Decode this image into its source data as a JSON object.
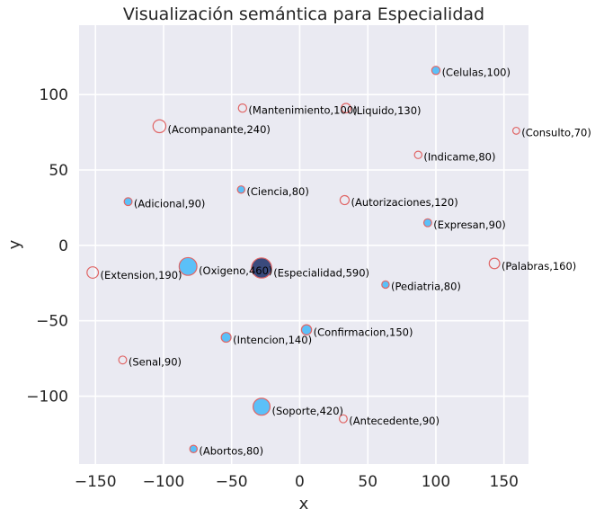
{
  "chart_data": {
    "type": "scatter",
    "title": "Visualización semántica para Especialidad",
    "xlabel": "x",
    "ylabel": "y",
    "xlim": [
      -162,
      168
    ],
    "ylim": [
      -145,
      146
    ],
    "x_ticks": [
      -150,
      -100,
      -50,
      0,
      50,
      100,
      150
    ],
    "y_ticks": [
      -100,
      -50,
      0,
      50,
      100
    ],
    "x_tick_labels": [
      "−150",
      "−100",
      "−50",
      "0",
      "50",
      "100",
      "150"
    ],
    "y_tick_labels": [
      "−100",
      "−50",
      "0",
      "50",
      "100"
    ],
    "grid": true,
    "colors": {
      "background": "#eaeaf2",
      "grid": "#ffffff",
      "filled": "#5bc0f8",
      "edge": "#e06666",
      "center": "#3a4a7c"
    },
    "points": [
      {
        "label": "(Especialidad,590)",
        "x": -28,
        "y": -15,
        "value": 590,
        "style": "center"
      },
      {
        "label": "(Celulas,100)",
        "x": 100,
        "y": 116,
        "value": 100,
        "style": "filled"
      },
      {
        "label": "(Mantenimiento,100)",
        "x": -42,
        "y": 91,
        "value": 100,
        "style": "hollow"
      },
      {
        "label": "(Liquido,130)",
        "x": 34,
        "y": 91,
        "value": 130,
        "style": "hollow"
      },
      {
        "label": "(Consulto,70)",
        "x": 159,
        "y": 76,
        "value": 70,
        "style": "hollow"
      },
      {
        "label": "(Acompanante,240)",
        "x": -103,
        "y": 79,
        "value": 240,
        "style": "hollow"
      },
      {
        "label": "(Indicame,80)",
        "x": 87,
        "y": 60,
        "value": 80,
        "style": "hollow"
      },
      {
        "label": "(Ciencia,80)",
        "x": -43,
        "y": 37,
        "value": 80,
        "style": "filled"
      },
      {
        "label": "(Adicional,90)",
        "x": -126,
        "y": 29,
        "value": 90,
        "style": "filled"
      },
      {
        "label": "(Autorizaciones,120)",
        "x": 33,
        "y": 30,
        "value": 120,
        "style": "hollow"
      },
      {
        "label": "(Expresan,90)",
        "x": 94,
        "y": 15,
        "value": 90,
        "style": "filled"
      },
      {
        "label": "(Palabras,160)",
        "x": 143,
        "y": -12,
        "value": 160,
        "style": "hollow"
      },
      {
        "label": "(Extension,190)",
        "x": -152,
        "y": -18,
        "value": 190,
        "style": "hollow"
      },
      {
        "label": "(Oxigeno,460)",
        "x": -82,
        "y": -14,
        "value": 460,
        "style": "filled"
      },
      {
        "label": "(Pediatria,80)",
        "x": 63,
        "y": -26,
        "value": 80,
        "style": "filled"
      },
      {
        "label": "(Confirmacion,150)",
        "x": 5,
        "y": -56,
        "value": 150,
        "style": "filled"
      },
      {
        "label": "(Intencion,140)",
        "x": -54,
        "y": -61,
        "value": 140,
        "style": "filled"
      },
      {
        "label": "(Senal,90)",
        "x": -130,
        "y": -76,
        "value": 90,
        "style": "hollow"
      },
      {
        "label": "(Soporte,420)",
        "x": -28,
        "y": -107,
        "value": 420,
        "style": "filled"
      },
      {
        "label": "(Antecedente,90)",
        "x": 32,
        "y": -115,
        "value": 90,
        "style": "hollow"
      },
      {
        "label": "(Abortos,80)",
        "x": -78,
        "y": -135,
        "value": 80,
        "style": "filled"
      }
    ]
  }
}
